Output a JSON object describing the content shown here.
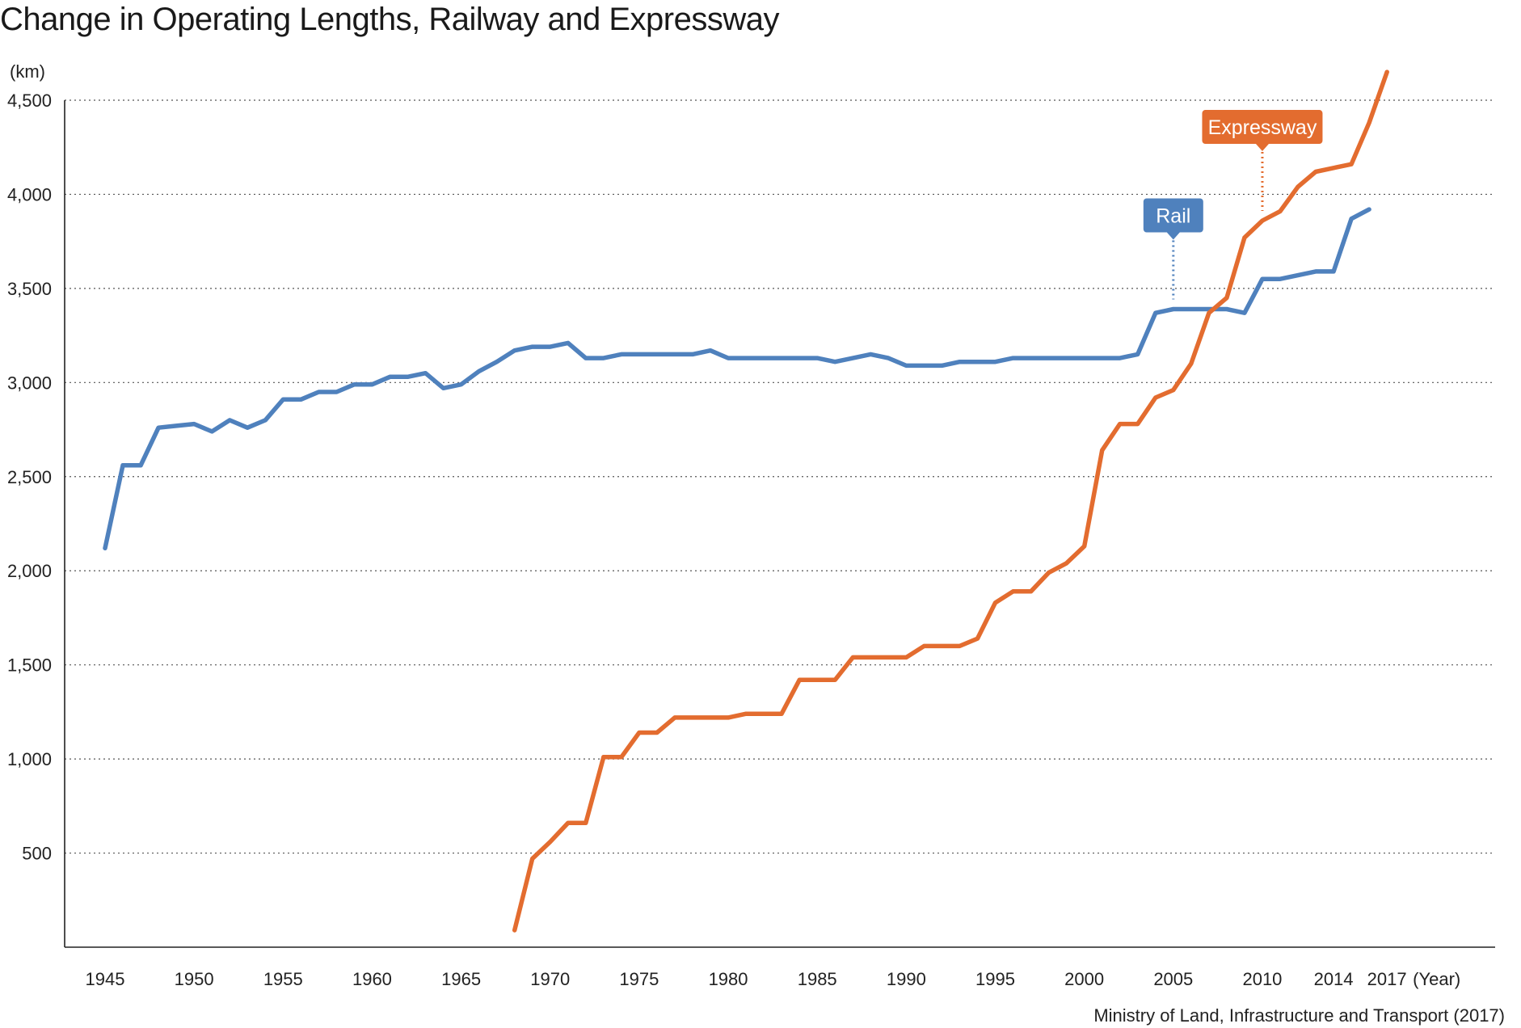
{
  "chart_data": {
    "type": "line",
    "title": "Change in Operating Lengths, Railway and Expressway",
    "ylabel": "(km)",
    "xlabel": "(Year)",
    "ylim": [
      0,
      4700
    ],
    "y_ticks": [
      500,
      1000,
      1500,
      2000,
      2500,
      3000,
      3500,
      4000,
      4500
    ],
    "y_tick_labels": [
      "500",
      "1,000",
      "1,500",
      "2,000",
      "2,500",
      "3,000",
      "3,500",
      "4,000",
      "4,500"
    ],
    "x_ticks": [
      1945,
      1950,
      1955,
      1960,
      1965,
      1970,
      1975,
      1980,
      1985,
      1990,
      1995,
      2000,
      2005,
      2010,
      2014,
      2017
    ],
    "x_tick_labels": [
      "1945",
      "1950",
      "1955",
      "1960",
      "1965",
      "1970",
      "1975",
      "1980",
      "1985",
      "1990",
      "1995",
      "2000",
      "2005",
      "2010",
      "2014",
      "2017"
    ],
    "grid": "horizontal dotted",
    "series": [
      {
        "name": "Rail",
        "color": "#4f81bd",
        "x": [
          1945,
          1946,
          1947,
          1948,
          1949,
          1950,
          1951,
          1952,
          1953,
          1954,
          1955,
          1956,
          1957,
          1958,
          1959,
          1960,
          1961,
          1962,
          1963,
          1964,
          1965,
          1966,
          1967,
          1968,
          1969,
          1970,
          1971,
          1972,
          1973,
          1974,
          1975,
          1976,
          1977,
          1978,
          1979,
          1980,
          1981,
          1982,
          1983,
          1984,
          1985,
          1986,
          1987,
          1988,
          1989,
          1990,
          1991,
          1992,
          1993,
          1994,
          1995,
          1996,
          1997,
          1998,
          1999,
          2000,
          2001,
          2002,
          2003,
          2004,
          2005,
          2006,
          2007,
          2008,
          2009,
          2010,
          2011,
          2012,
          2013,
          2014,
          2015,
          2016
        ],
        "values": [
          2120,
          2560,
          2560,
          2760,
          2770,
          2780,
          2740,
          2800,
          2760,
          2800,
          2910,
          2910,
          2950,
          2950,
          2990,
          2990,
          3030,
          3030,
          3050,
          2970,
          2990,
          3060,
          3110,
          3170,
          3190,
          3190,
          3210,
          3130,
          3130,
          3150,
          3150,
          3150,
          3150,
          3150,
          3170,
          3130,
          3130,
          3130,
          3130,
          3130,
          3130,
          3110,
          3130,
          3150,
          3130,
          3090,
          3090,
          3090,
          3110,
          3110,
          3110,
          3130,
          3130,
          3130,
          3130,
          3130,
          3130,
          3130,
          3150,
          3370,
          3390,
          3390,
          3390,
          3390,
          3370,
          3550,
          3550,
          3570,
          3590,
          3590,
          3870,
          3920
        ]
      },
      {
        "name": "Expressway",
        "color": "#e36c2f",
        "x": [
          1968,
          1969,
          1970,
          1971,
          1972,
          1973,
          1974,
          1975,
          1976,
          1977,
          1978,
          1979,
          1980,
          1981,
          1982,
          1983,
          1984,
          1985,
          1986,
          1987,
          1988,
          1989,
          1990,
          1991,
          1992,
          1993,
          1994,
          1995,
          1996,
          1997,
          1998,
          1999,
          2000,
          2001,
          2002,
          2003,
          2004,
          2005,
          2006,
          2007,
          2008,
          2009,
          2010,
          2011,
          2012,
          2013,
          2014,
          2015,
          2016,
          2017
        ],
        "values": [
          90,
          470,
          560,
          660,
          660,
          1010,
          1010,
          1140,
          1140,
          1220,
          1220,
          1220,
          1220,
          1240,
          1240,
          1240,
          1420,
          1420,
          1420,
          1540,
          1540,
          1540,
          1540,
          1600,
          1600,
          1600,
          1640,
          1830,
          1890,
          1890,
          1990,
          2040,
          2130,
          2640,
          2780,
          2780,
          2920,
          2960,
          3100,
          3370,
          3450,
          3770,
          3860,
          3910,
          4040,
          4120,
          4140,
          4160,
          4380,
          4650
        ]
      }
    ],
    "annotations": [
      {
        "label": "Rail",
        "x": 2005,
        "color": "#4f81bd"
      },
      {
        "label": "Expressway",
        "x": 2010,
        "color": "#e36c2f"
      }
    ],
    "source": "Ministry of Land, Infrastructure and Transport (2017)"
  }
}
